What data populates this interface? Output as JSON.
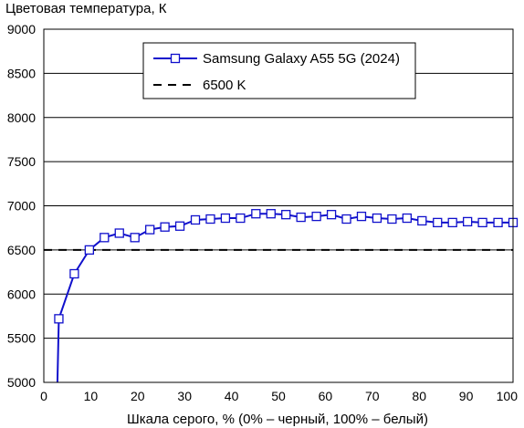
{
  "chart_data": {
    "type": "line",
    "title": "",
    "ylabel": "Цветовая температура, К",
    "xlabel": "Шкала серого, % (0% – черный, 100% – белый)",
    "xlim": [
      0,
      100
    ],
    "ylim": [
      5000,
      9000
    ],
    "x_ticks": [
      0,
      10,
      20,
      30,
      40,
      50,
      60,
      70,
      80,
      90,
      100
    ],
    "y_ticks": [
      5000,
      5500,
      6000,
      6500,
      7000,
      7500,
      8000,
      8500,
      9000
    ],
    "grid": "horizontal",
    "legend_position": "top-right",
    "series": [
      {
        "name": "Samsung Galaxy A55 5G (2024)",
        "color": "#1010cc",
        "marker": "square",
        "x": [
          3.2,
          6.5,
          9.7,
          12.9,
          16.1,
          19.4,
          22.6,
          25.8,
          29.0,
          32.3,
          35.5,
          38.7,
          41.9,
          45.2,
          48.4,
          51.6,
          54.8,
          58.1,
          61.3,
          64.5,
          67.7,
          71.0,
          74.2,
          77.4,
          80.6,
          83.9,
          87.1,
          90.3,
          93.5,
          96.8,
          100
        ],
        "y": [
          5720,
          6230,
          6500,
          6640,
          6690,
          6640,
          6730,
          6760,
          6770,
          6840,
          6850,
          6860,
          6860,
          6910,
          6910,
          6900,
          6870,
          6880,
          6900,
          6850,
          6880,
          6860,
          6850,
          6860,
          6830,
          6810,
          6810,
          6820,
          6810,
          6810,
          6810
        ],
        "line_start": {
          "x": 2.9,
          "y": 5000
        }
      },
      {
        "name": "6500 K",
        "color": "#000000",
        "style": "dashed",
        "y_constant": 6500
      }
    ]
  }
}
